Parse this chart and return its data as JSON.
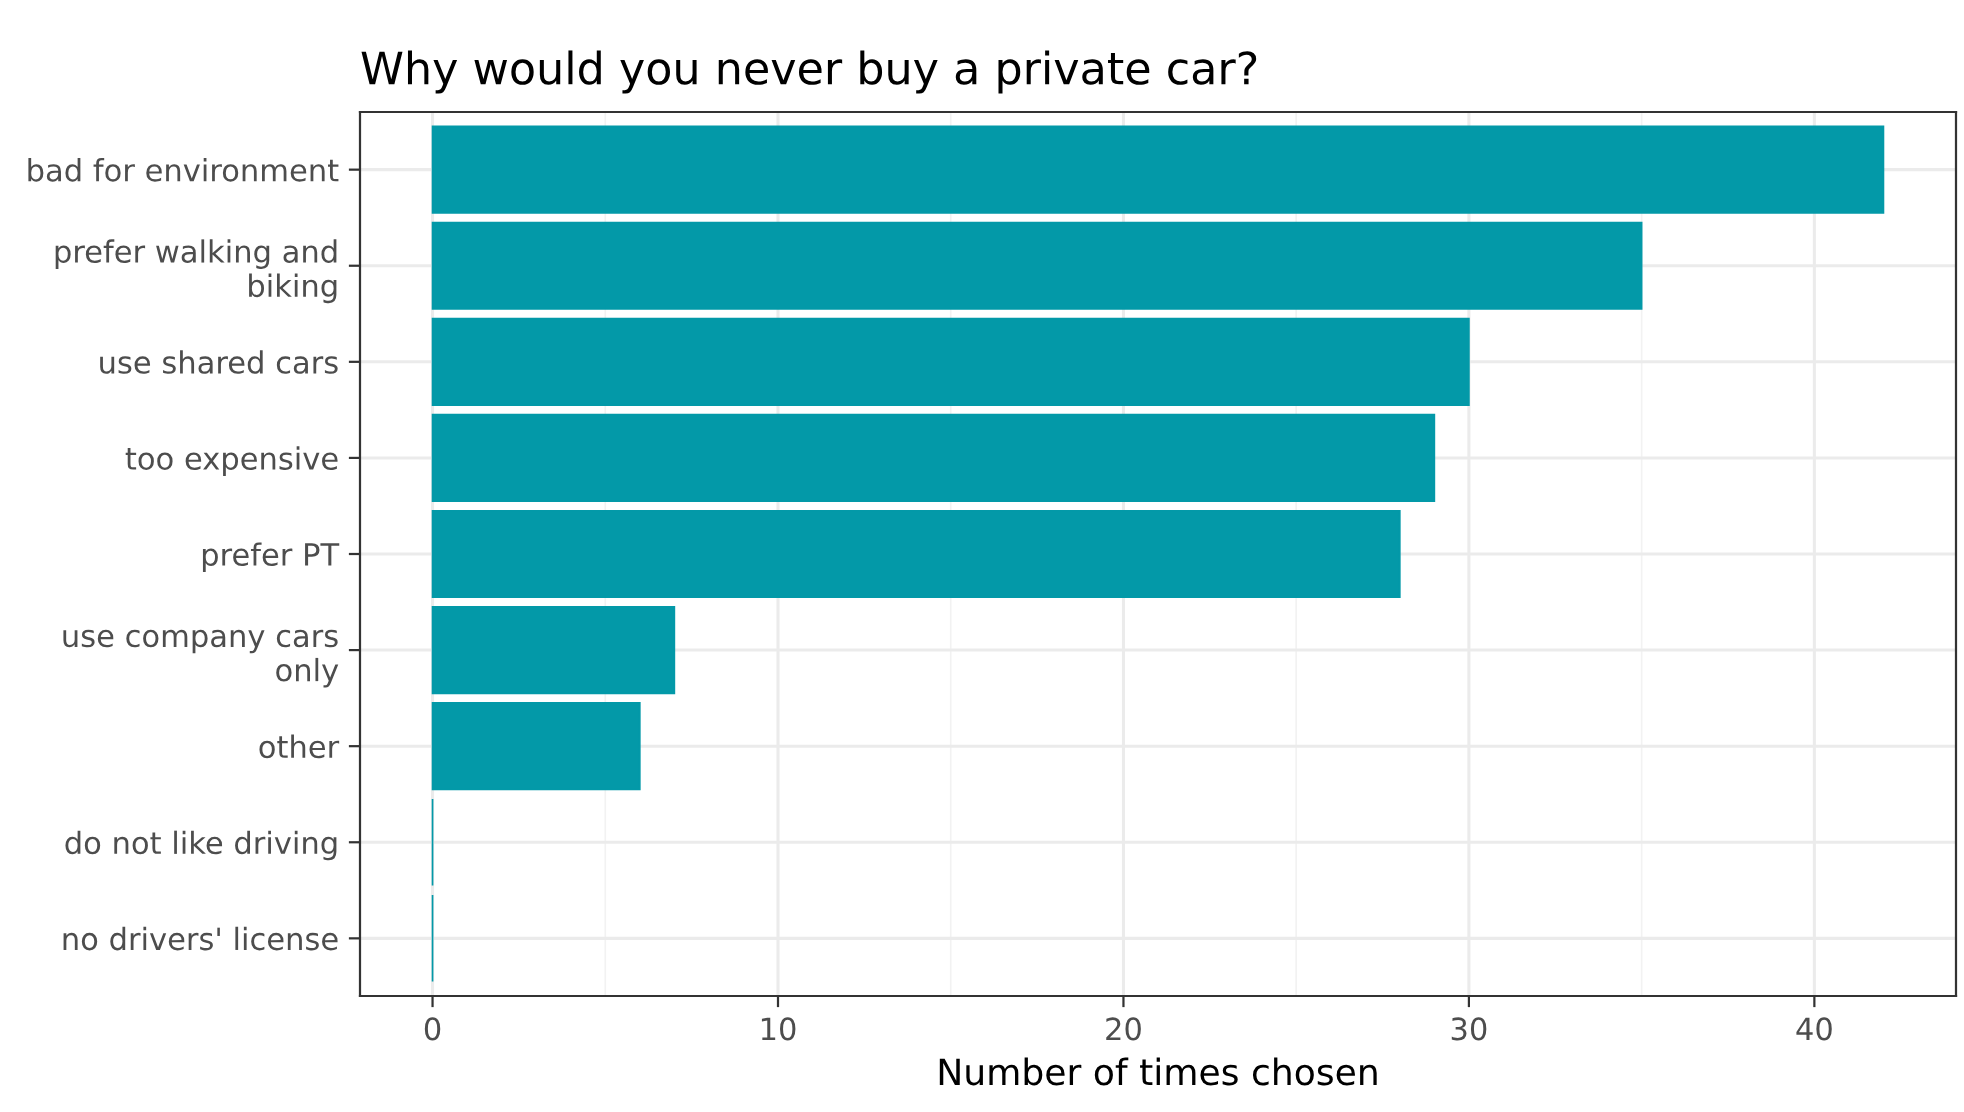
{
  "chart_data": {
    "type": "bar",
    "orientation": "horizontal",
    "title": "Why would you never buy a private car?",
    "xlabel": "Number of times chosen",
    "categories": [
      "bad for environment",
      "prefer walking and\nbiking",
      "use shared cars",
      "too expensive",
      "prefer PT",
      "use company cars\nonly",
      "other",
      "do not like driving",
      "no drivers' license"
    ],
    "values": [
      42,
      35,
      30,
      29,
      28,
      7,
      6,
      0,
      0
    ],
    "color": "#0399a8",
    "xlim": [
      -2.1,
      44.1
    ],
    "xticks": [
      0,
      10,
      20,
      30,
      40
    ],
    "grid": true
  }
}
